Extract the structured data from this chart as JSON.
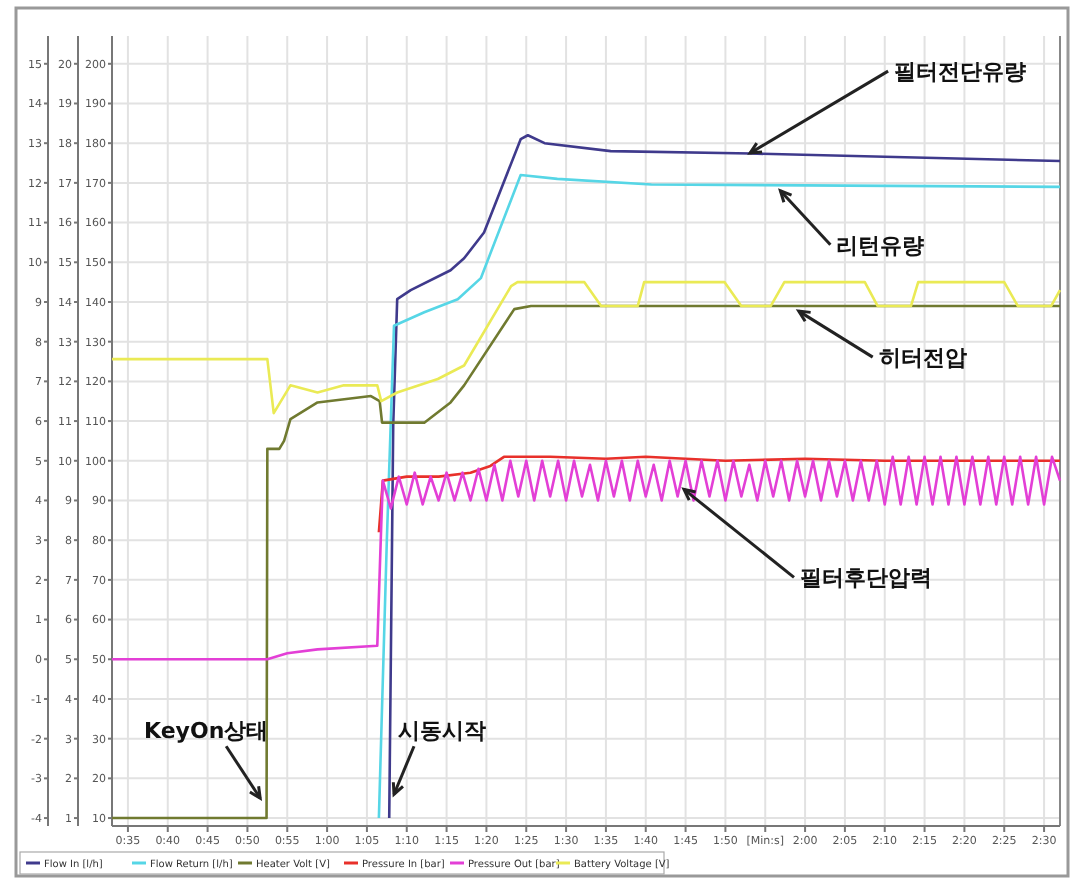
{
  "chart_data": {
    "type": "line",
    "xlim": [
      33,
      152
    ],
    "xticks": [
      {
        "value": 35,
        "label": "0:35"
      },
      {
        "value": 40,
        "label": "0:40"
      },
      {
        "value": 45,
        "label": "0:45"
      },
      {
        "value": 50,
        "label": "0:50"
      },
      {
        "value": 55,
        "label": "0:55"
      },
      {
        "value": 60,
        "label": "1:00"
      },
      {
        "value": 65,
        "label": "1:05"
      },
      {
        "value": 70,
        "label": "1:10"
      },
      {
        "value": 75,
        "label": "1:15"
      },
      {
        "value": 80,
        "label": "1:20"
      },
      {
        "value": 85,
        "label": "1:25"
      },
      {
        "value": 90,
        "label": "1:30"
      },
      {
        "value": 95,
        "label": "1:35"
      },
      {
        "value": 100,
        "label": "1:40"
      },
      {
        "value": 105,
        "label": "1:45"
      },
      {
        "value": 110,
        "label": "1:50"
      },
      {
        "value": 115,
        "label": "[Min:s]"
      },
      {
        "value": 120,
        "label": "2:00"
      },
      {
        "value": 125,
        "label": "2:05"
      },
      {
        "value": 130,
        "label": "2:10"
      },
      {
        "value": 135,
        "label": "2:15"
      },
      {
        "value": 140,
        "label": "2:20"
      },
      {
        "value": 145,
        "label": "2:25"
      },
      {
        "value": 150,
        "label": "2:30"
      }
    ],
    "ylim": [
      -4.2,
      15.7
    ],
    "yticks": [
      -4,
      -3,
      -2,
      -1,
      0,
      1,
      2,
      3,
      4,
      5,
      6,
      7,
      8,
      9,
      10,
      11,
      12,
      13,
      14,
      15
    ],
    "y2lim": [
      0.8,
      20.7
    ],
    "y2ticks": [
      1,
      2,
      3,
      4,
      5,
      6,
      7,
      8,
      9,
      10,
      11,
      12,
      13,
      14,
      15,
      16,
      17,
      18,
      19,
      20
    ],
    "y3lim": [
      8,
      207
    ],
    "y3ticks": [
      10,
      20,
      30,
      40,
      50,
      60,
      70,
      80,
      90,
      100,
      110,
      120,
      130,
      140,
      150,
      160,
      170,
      180,
      190,
      200
    ],
    "grid": true,
    "legend": "bottom",
    "series": [
      {
        "name": "Flow In [l/h]",
        "color": "#3f3a8c",
        "x": [
          67.8,
          68.3,
          68.8,
          70.5,
          75.5,
          77.2,
          79.7,
          84.3,
          85.2,
          87.3,
          95.6,
          113.2,
          152
        ],
        "values": [
          -4,
          5.9,
          9.07,
          9.3,
          9.8,
          10.1,
          10.75,
          13.1,
          13.2,
          13.0,
          12.8,
          12.74,
          12.55
        ]
      },
      {
        "name": "Flow Return [l/h]",
        "color": "#56d6e6",
        "x": [
          66.5,
          67.5,
          68.4,
          72.2,
          76.4,
          79.3,
          84.3,
          88.9,
          100.7,
          152
        ],
        "values": [
          -4,
          3,
          8.4,
          8.74,
          9.07,
          9.6,
          12.2,
          12.1,
          11.96,
          11.9
        ]
      },
      {
        "name": "Heater Volt [V]",
        "color": "#707a30",
        "x": [
          33,
          52.4,
          52.5,
          54,
          54.6,
          55.4,
          58.8,
          65.5,
          66.6,
          66.9,
          68,
          72.2,
          75.5,
          77.2,
          83.5,
          85.6,
          152
        ],
        "values": [
          -4,
          -4,
          5.3,
          5.3,
          5.5,
          6.05,
          6.47,
          6.63,
          6.5,
          5.96,
          5.96,
          5.96,
          6.47,
          6.9,
          8.82,
          8.9,
          8.9
        ]
      },
      {
        "name": "Pressure In [bar]",
        "color": "#e8302a",
        "x": [
          66.5,
          67,
          70,
          74,
          78,
          80.5,
          82.2,
          88,
          95,
          100,
          110,
          120,
          130,
          140,
          150,
          152
        ],
        "values": [
          3.2,
          4.5,
          4.6,
          4.6,
          4.7,
          4.87,
          5.1,
          5.1,
          5.05,
          5.1,
          5.0,
          5.05,
          5.0,
          5.0,
          5.0,
          5.0
        ]
      },
      {
        "name": "Pressure Out [bar]",
        "color": "#e33fd6",
        "x": [
          33,
          52.5,
          55,
          58.8,
          66.3,
          66.8,
          67,
          68,
          69,
          70,
          71,
          72,
          73,
          74,
          75,
          76,
          77,
          78,
          79,
          80,
          81,
          82,
          83,
          84,
          85,
          86,
          87,
          88,
          89,
          90,
          91,
          92,
          93,
          94,
          95,
          96,
          97,
          98,
          99,
          100,
          101,
          102,
          103,
          104,
          105,
          106,
          107,
          108,
          109,
          110,
          111,
          112,
          113,
          114,
          115,
          116,
          117,
          118,
          119,
          120,
          121,
          122,
          123,
          124,
          125,
          126,
          127,
          128,
          129,
          130,
          131,
          132,
          133,
          134,
          135,
          136,
          137,
          138,
          139,
          140,
          141,
          142,
          143,
          144,
          145,
          146,
          147,
          148,
          149,
          150,
          151,
          152
        ],
        "values": [
          0,
          0,
          0.15,
          0.25,
          0.34,
          3.4,
          4.5,
          3.8,
          4.6,
          3.9,
          4.7,
          3.9,
          4.6,
          4.0,
          4.7,
          4.0,
          4.7,
          4.0,
          4.8,
          4.0,
          4.9,
          4.0,
          5.0,
          4.1,
          5.0,
          4.0,
          5.0,
          4.1,
          5.0,
          4.0,
          5.0,
          4.1,
          4.9,
          4.0,
          5.0,
          4.1,
          5.0,
          4.0,
          5.0,
          4.1,
          4.9,
          4.0,
          5.0,
          4.1,
          5.0,
          4.0,
          5.0,
          4.1,
          5.0,
          4.0,
          5.0,
          4.1,
          4.9,
          4.0,
          5.0,
          4.1,
          5.0,
          4.0,
          5.0,
          4.1,
          5.0,
          4.0,
          5.0,
          4.1,
          5.0,
          4.0,
          5.0,
          4.0,
          5.0,
          3.9,
          5.1,
          3.9,
          5.1,
          3.9,
          5.1,
          3.9,
          5.1,
          3.9,
          5.1,
          3.9,
          5.1,
          3.9,
          5.1,
          3.9,
          5.1,
          3.9,
          5.1,
          3.9,
          5.1,
          3.9,
          5.1,
          4.5
        ]
      },
      {
        "name": "Battery Voltage [V]",
        "color": "#eaea55",
        "x": [
          33,
          52.5,
          53.3,
          55.4,
          58.8,
          62.1,
          66.3,
          66.8,
          68.8,
          73.9,
          77.2,
          83.1,
          83.9,
          92.3,
          94.4,
          99,
          99.8,
          109.9,
          112,
          115.7,
          117.4,
          127.5,
          129.1,
          133.3,
          134.2,
          145,
          146.7,
          150.9,
          152
        ],
        "values": [
          7.56,
          7.56,
          6.2,
          6.9,
          6.72,
          6.9,
          6.9,
          6.5,
          6.72,
          7.06,
          7.4,
          9.4,
          9.5,
          9.5,
          8.9,
          8.9,
          9.5,
          9.5,
          8.9,
          8.9,
          9.5,
          9.5,
          8.9,
          8.9,
          9.5,
          9.5,
          8.9,
          8.9,
          9.3
        ]
      }
    ],
    "annotations": [
      {
        "text": "필터전단유량",
        "x": 113.1,
        "y": 12.75
      },
      {
        "text": "리턴유량",
        "x": 116.9,
        "y": 11.8
      },
      {
        "text": "히터전압",
        "x": 119.2,
        "y": 8.77
      },
      {
        "text": "필터후단압력",
        "x": 104.8,
        "y": 4.28
      },
      {
        "text": "KeyOn상태",
        "x": 51.6,
        "y": -3.5
      },
      {
        "text": "시동시작",
        "x": 68.4,
        "y": -3.4
      }
    ]
  }
}
